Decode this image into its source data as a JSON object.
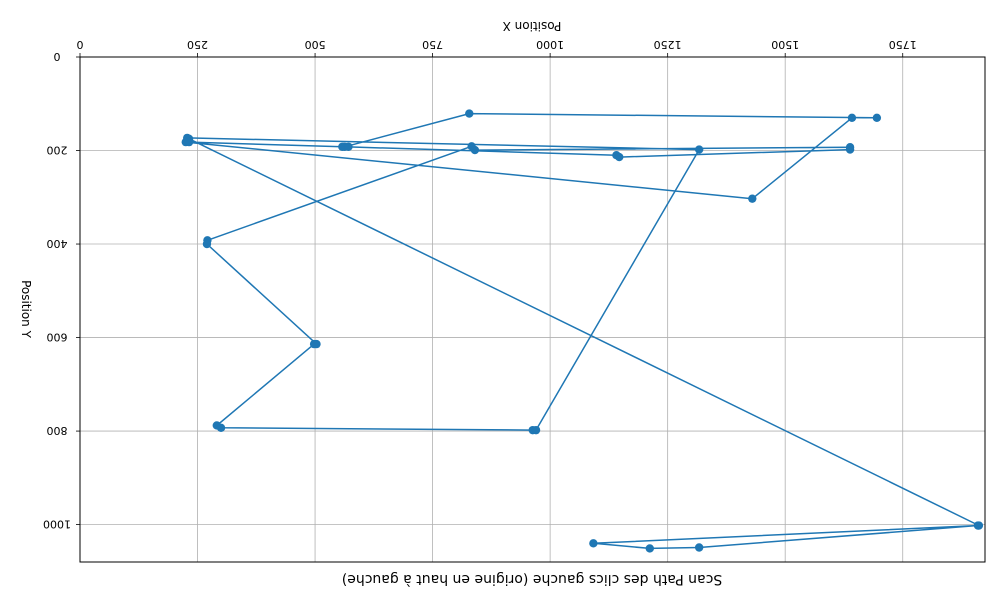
{
  "chart_data": {
    "type": "line",
    "title": "Scan Path des clics gauche (origine en haut à gauche)",
    "xlabel": "Position X",
    "ylabel": "Position Y",
    "xlim": [
      0,
      1925
    ],
    "ylim": [
      1080,
      0
    ],
    "x_axis_position": "top",
    "y_inverted": true,
    "xticks": [
      0,
      250,
      500,
      750,
      1000,
      1250,
      1500,
      1750
    ],
    "yticks": [
      0,
      200,
      400,
      600,
      800,
      1000
    ],
    "grid": true,
    "marker": "circle",
    "color": "#1f77b4",
    "series": [
      {
        "x": [
          1910,
          1317,
          1212,
          1092,
          1912,
          232,
          225,
          1430,
          1642,
          1695,
          828,
          563,
          1141,
          1147,
          1638,
          1638,
          840,
          833,
          271,
          270,
          503,
          498,
          291,
          300,
          963,
          970,
          1317,
          228,
          232,
          558,
          571
        ],
        "y": [
          1002,
          1049,
          1051,
          1040,
          1002,
          175,
          182,
          303,
          130,
          130,
          121,
          192,
          210,
          214,
          198,
          193,
          199,
          191,
          392,
          400,
          614,
          614,
          788,
          793,
          798,
          798,
          198,
          173,
          182,
          192,
          192
        ]
      }
    ]
  }
}
